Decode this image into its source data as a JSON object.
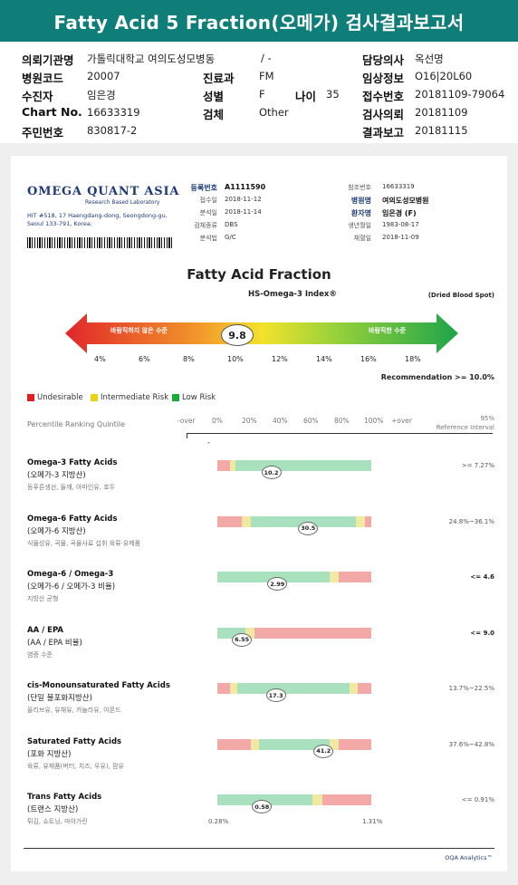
{
  "header": {
    "title": "Fatty Acid 5 Fraction(오메가) 검사결과보고서"
  },
  "info": {
    "hospital_label": "의뢰기관명",
    "hospital_value": "가톨릭대학교 여의도성모병동",
    "hospital_extra": "/ -",
    "doctor_label": "담당의사",
    "doctor_value": "옥선명",
    "code_label": "병원코드",
    "code_value": "20007",
    "dept_label": "진료과",
    "dept_value": "FM",
    "clinical_label": "임상정보",
    "clinical_value": "O16|20L60",
    "patient_label": "수진자",
    "patient_value": "임은경",
    "sex_label": "성별",
    "sex_value": "F",
    "age_label": "나이",
    "age_value": "35",
    "receipt_label": "접수번호",
    "receipt_value": "20181109-79064",
    "chart_label": "Chart No.",
    "chart_value": "16633319",
    "specimen_label": "검체",
    "specimen_value": "Other",
    "request_label": "검사의뢰",
    "request_value": "20181109",
    "id_label": "주민번호",
    "id_value": "830817-2",
    "report_label": "결과보고",
    "report_value": "20181115"
  },
  "doc": {
    "logo": "OMEGA QUANT ASIA",
    "logo_sub": "Research Based Laboratory",
    "address": "HIT #518, 17 Haengdang-dong, Seongdong-gu, Seoul 133-791, Korea.",
    "meta_left": [
      {
        "label": "등록번호",
        "value": "A1111590",
        "bold": true
      },
      {
        "label": "접수일",
        "value": "2018-11-12"
      },
      {
        "label": "분석일",
        "value": "2018-11-14"
      },
      {
        "label": "검체종류",
        "value": "DBS"
      },
      {
        "label": "분석법",
        "value": "G/C"
      }
    ],
    "meta_right": [
      {
        "label": "참조번호",
        "value": "16633319"
      },
      {
        "label": "병원명",
        "value": "여의도성모병원",
        "bold": true
      },
      {
        "label": "환자명",
        "value": "임은경 (F)",
        "bold": true
      },
      {
        "label": "생년월일",
        "value": "1983-08-17"
      },
      {
        "label": "채혈일",
        "value": "2018-11-09"
      }
    ],
    "title": "Fatty Acid Fraction",
    "subtitle": "HS-Omega-3 Index®",
    "dbs_note": "(Dried Blood Spot)",
    "arrow_left": "바람직하지 않은 수준",
    "arrow_right": "바람직한 수준",
    "omega_value": "9.8",
    "scale": [
      "4%",
      "6%",
      "8%",
      "10%",
      "12%",
      "14%",
      "16%",
      "18%"
    ],
    "recommendation": "Recommendation  >= 10.0%",
    "legend": [
      {
        "label": "Undesirable",
        "color": "#e02020"
      },
      {
        "label": "Intermediate Risk",
        "color": "#e8d21a"
      },
      {
        "label": "Low Risk",
        "color": "#1aaa3a"
      }
    ],
    "col_header": "Percentile Ranking Quintile",
    "col_ticks": [
      "-over",
      "0%",
      "20%",
      "40%",
      "60%",
      "80%",
      "100%",
      "+over"
    ],
    "col_ref": "95%\nReference Interval",
    "rows": [
      {
        "title": "Omega-3 Fatty Acids",
        "sub": "(오메가-3 지방산)",
        "desc": "등푸른생선, 들깨, 아마인유, 호두",
        "value": "10.2",
        "pos": 0.35,
        "ref": ">= 7.27%",
        "ref_bold": false,
        "segs": [
          {
            "w": 0.08,
            "c": "#f4a9a9"
          },
          {
            "w": 0.04,
            "c": "#f1e9a1"
          },
          {
            "w": 0.88,
            "c": "#a9e0bd"
          }
        ]
      },
      {
        "title": "Omega-6 Fatty Acids",
        "sub": "(오메가-6 지방산)",
        "desc": "식물성유, 곡물, 곡물사료 섭취 육류·유제품",
        "value": "30.5",
        "pos": 0.59,
        "ref": "24.8%~36.1%",
        "ref_bold": false,
        "segs": [
          {
            "w": 0.16,
            "c": "#f4a9a9"
          },
          {
            "w": 0.06,
            "c": "#f1e9a1"
          },
          {
            "w": 0.68,
            "c": "#a9e0bd"
          },
          {
            "w": 0.06,
            "c": "#f1e9a1"
          },
          {
            "w": 0.04,
            "c": "#f4a9a9"
          }
        ]
      },
      {
        "title": "Omega-6 / Omega-3",
        "sub": "(오메가-6 / 오메가-3 비율)",
        "desc": "지방산 균형",
        "value": "2.99",
        "pos": 0.39,
        "ref": "<= 4.6",
        "ref_bold": true,
        "segs": [
          {
            "w": 0.73,
            "c": "#a9e0bd"
          },
          {
            "w": 0.06,
            "c": "#f1e9a1"
          },
          {
            "w": 0.21,
            "c": "#f4a9a9"
          }
        ]
      },
      {
        "title": "AA / EPA",
        "sub": "(AA / EPA 비율)",
        "desc": "염증 수준",
        "value": "6.55",
        "pos": 0.16,
        "ref": "<= 9.0",
        "ref_bold": true,
        "segs": [
          {
            "w": 0.18,
            "c": "#a9e0bd"
          },
          {
            "w": 0.06,
            "c": "#f1e9a1"
          },
          {
            "w": 0.76,
            "c": "#f4a9a9"
          }
        ]
      },
      {
        "title": "cis-Monounsaturated Fatty Acids",
        "sub": "(단일 불포화지방산)",
        "desc": "올리브유, 유채유, 카놀라유, 아몬드",
        "value": "17.3",
        "pos": 0.38,
        "ref": "13.7%~22.5%",
        "ref_bold": false,
        "segs": [
          {
            "w": 0.08,
            "c": "#f4a9a9"
          },
          {
            "w": 0.05,
            "c": "#f1e9a1"
          },
          {
            "w": 0.73,
            "c": "#a9e0bd"
          },
          {
            "w": 0.05,
            "c": "#f1e9a1"
          },
          {
            "w": 0.09,
            "c": "#f4a9a9"
          }
        ]
      },
      {
        "title": "Saturated Fatty Acids",
        "sub": "(포화 지방산)",
        "desc": "육류, 유제품(버터, 치즈, 우유), 팜유",
        "value": "41.2",
        "pos": 0.69,
        "ref": "37.6%~42.8%",
        "ref_bold": false,
        "segs": [
          {
            "w": 0.22,
            "c": "#f4a9a9"
          },
          {
            "w": 0.05,
            "c": "#f1e9a1"
          },
          {
            "w": 0.46,
            "c": "#a9e0bd"
          },
          {
            "w": 0.06,
            "c": "#f1e9a1"
          },
          {
            "w": 0.21,
            "c": "#f4a9a9"
          }
        ]
      },
      {
        "title": "Trans Fatty Acids",
        "sub": "(트랜스 지방산)",
        "desc": "튀김, 쇼트닝, 마아가린",
        "value": "0.58",
        "pos": 0.29,
        "ref": "<= 0.91%",
        "ref_bold": false,
        "segs": [
          {
            "w": 0.62,
            "c": "#a9e0bd"
          },
          {
            "w": 0.06,
            "c": "#f1e9a1"
          },
          {
            "w": 0.32,
            "c": "#f4a9a9"
          }
        ],
        "min": "0.28%",
        "max": "1.31%"
      }
    ],
    "footer": "OQA Analytics™"
  }
}
